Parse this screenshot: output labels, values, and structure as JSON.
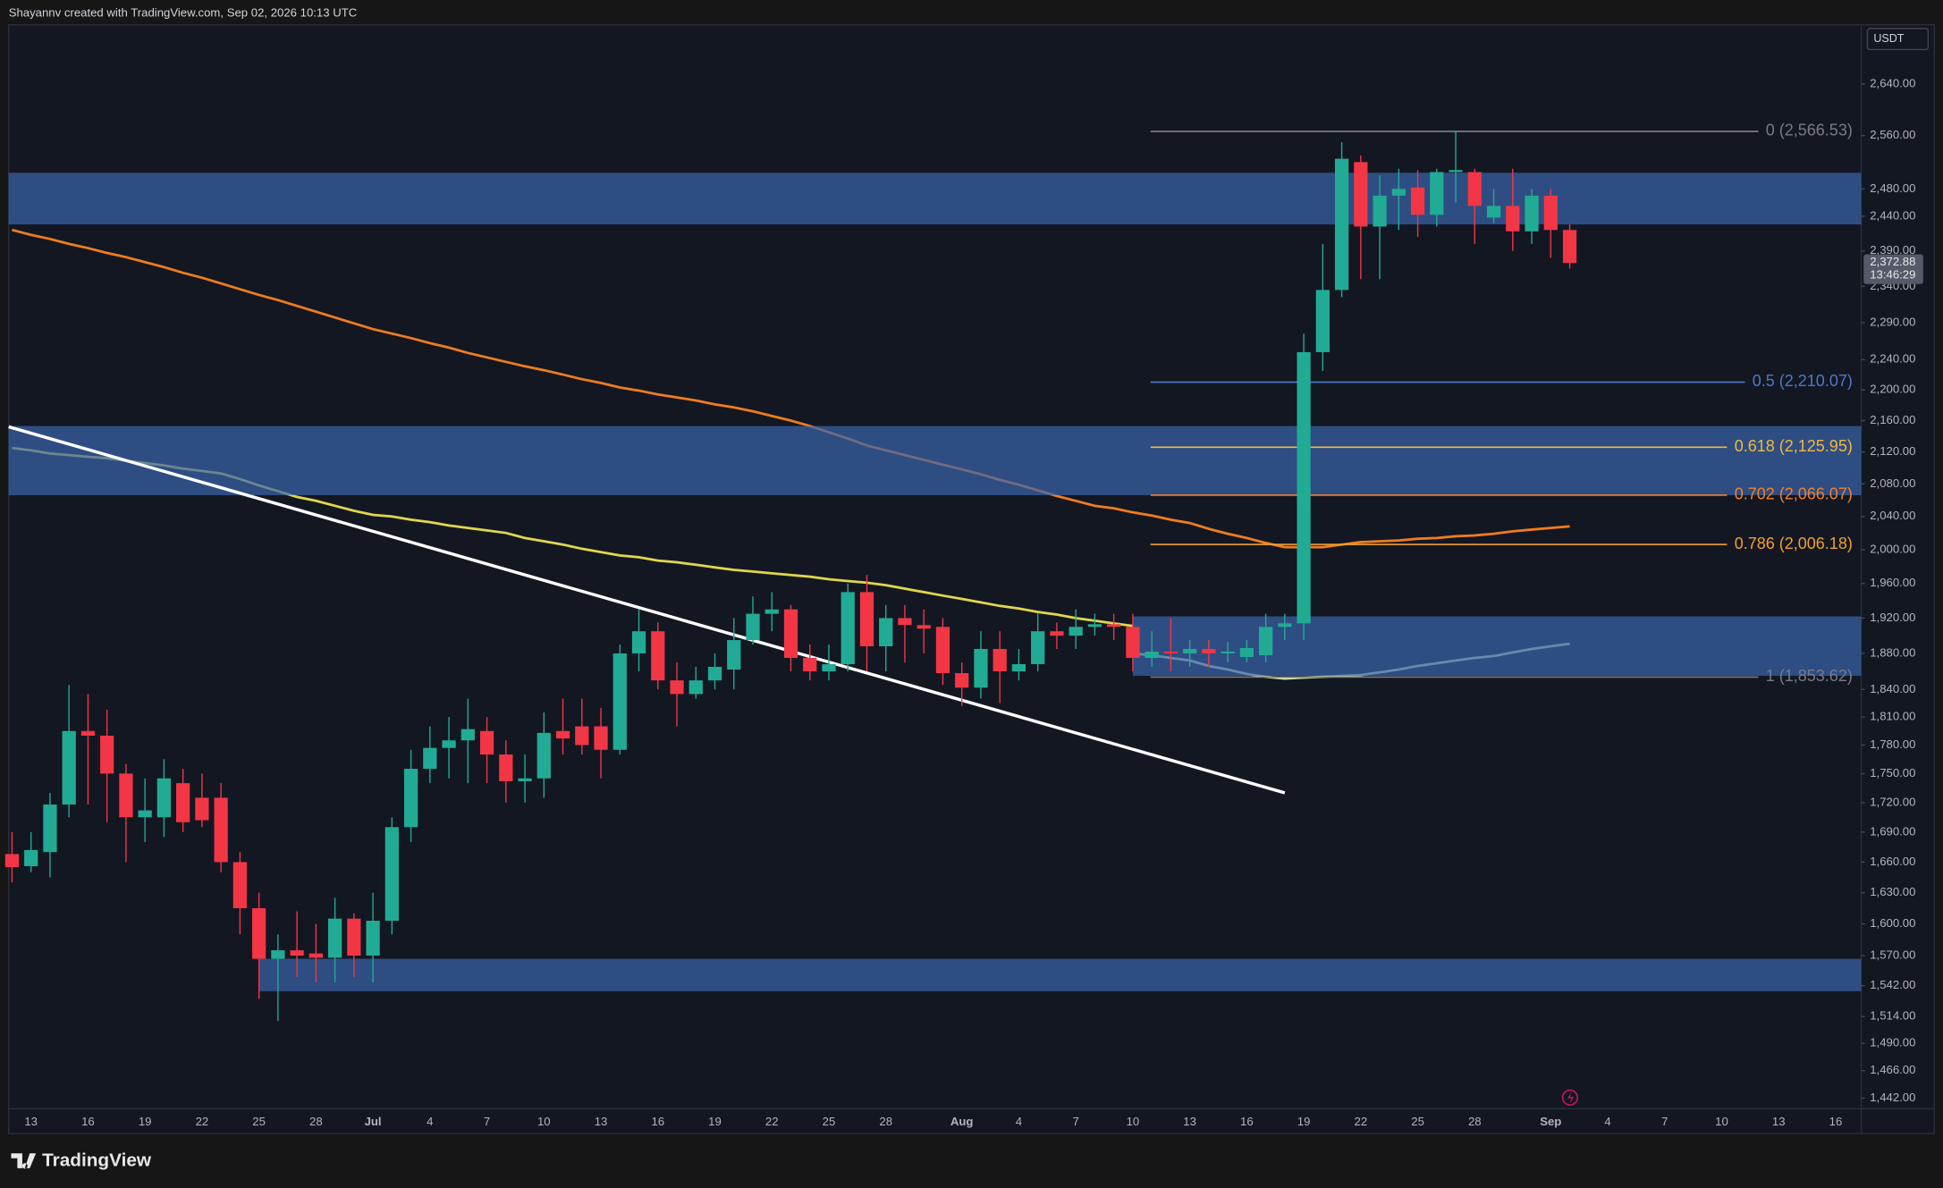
{
  "header": "Shayannv created with TradingView.com, Sep 02, 2026 10:13 UTC",
  "footer": {
    "logo": "TradingView"
  },
  "chart_data": {
    "type": "candlestick",
    "currency": "USDT",
    "log_scale": true,
    "categories": [
      null,
      "13",
      null,
      null,
      "16",
      null,
      null,
      "19",
      null,
      null,
      "22",
      null,
      null,
      "25",
      null,
      null,
      "28",
      null,
      null,
      "Jul",
      null,
      null,
      "4",
      null,
      null,
      "7",
      null,
      null,
      "10",
      null,
      null,
      "13",
      null,
      null,
      "16",
      null,
      null,
      "19",
      null,
      null,
      "22",
      null,
      null,
      "25",
      null,
      null,
      "28",
      null,
      null,
      null,
      "Aug",
      null,
      null,
      "4",
      null,
      null,
      "7",
      null,
      null,
      "10",
      null,
      null,
      "13",
      null,
      null,
      "16",
      null,
      null,
      "19",
      null,
      null,
      "22",
      null,
      null,
      "25",
      null,
      null,
      "28",
      null,
      null,
      null,
      "Sep",
      null,
      null,
      "4",
      null,
      null,
      "7",
      null,
      null,
      "10",
      null,
      null,
      "13",
      null,
      null,
      "16",
      null
    ],
    "open": [
      1668,
      1656,
      1670,
      1718,
      1795,
      1790,
      1750,
      1705,
      1705,
      1740,
      1725,
      1725,
      1660,
      1615,
      1567,
      1575,
      1572,
      1568,
      1605,
      1570,
      1603,
      1695,
      1755,
      1777,
      1785,
      1795,
      1770,
      1742,
      1745,
      1795,
      1800,
      1800,
      1775,
      1880,
      1905,
      1850,
      1835,
      1850,
      1862,
      1895,
      1925,
      1930,
      1875,
      1860,
      1868,
      1950,
      1888,
      1920,
      1912,
      1910,
      1858,
      1842,
      1885,
      1860,
      1868,
      1905,
      1900,
      1910,
      1913,
      1910,
      1875,
      1882,
      1880,
      1885,
      1880,
      1876,
      1878,
      1910,
      1914,
      2250,
      2335,
      2520,
      2425,
      2470,
      2482,
      2442,
      2505,
      2505,
      2438,
      2455,
      2418,
      2470,
      2420,
      null,
      null,
      null,
      null,
      null,
      null,
      null,
      null,
      null,
      null,
      null,
      null,
      null,
      null,
      null
    ],
    "high": [
      1690,
      1690,
      1730,
      1845,
      1835,
      1818,
      1760,
      1745,
      1765,
      1755,
      1750,
      1740,
      1670,
      1630,
      1590,
      1612,
      1600,
      1625,
      1610,
      1630,
      1705,
      1775,
      1800,
      1810,
      1830,
      1810,
      1785,
      1770,
      1815,
      1830,
      1830,
      1820,
      1890,
      1930,
      1915,
      1870,
      1865,
      1880,
      1920,
      1945,
      1950,
      1935,
      1890,
      1890,
      1960,
      1970,
      1935,
      1935,
      1930,
      1920,
      1870,
      1905,
      1905,
      1885,
      1925,
      1915,
      1930,
      1925,
      1925,
      1925,
      1905,
      1920,
      1895,
      1895,
      1893,
      1895,
      1925,
      1925,
      2275,
      2400,
      2550,
      2530,
      2500,
      2510,
      2508,
      2510,
      2566.53,
      2510,
      2480,
      2510,
      2480,
      2480,
      2428,
      null,
      null,
      null,
      null,
      null,
      null,
      null,
      null,
      null,
      null,
      null,
      null,
      null,
      null,
      null
    ],
    "low": [
      1640,
      1650,
      1645,
      1705,
      1718,
      1700,
      1660,
      1680,
      1685,
      1690,
      1695,
      1650,
      1590,
      1530,
      1510,
      1550,
      1545,
      1545,
      1550,
      1545,
      1590,
      1680,
      1740,
      1745,
      1740,
      1740,
      1720,
      1720,
      1725,
      1770,
      1770,
      1745,
      1770,
      1860,
      1840,
      1800,
      1830,
      1840,
      1840,
      1890,
      1905,
      1860,
      1850,
      1850,
      1860,
      1860,
      1860,
      1870,
      1880,
      1845,
      1822,
      1830,
      1825,
      1850,
      1860,
      1885,
      1885,
      1900,
      1895,
      1860,
      1865,
      1860,
      1865,
      1865,
      1870,
      1870,
      1870,
      1895,
      1895,
      2225,
      2325,
      2350,
      2350,
      2420,
      2410,
      2425,
      2460,
      2400,
      2430,
      2390,
      2400,
      2380,
      2365,
      null,
      null,
      null,
      null,
      null,
      null,
      null,
      null,
      null,
      null,
      null,
      null,
      null,
      null,
      null
    ],
    "close": [
      1655,
      1672,
      1718,
      1795,
      1790,
      1750,
      1705,
      1712,
      1745,
      1700,
      1702,
      1660,
      1615,
      1567,
      1575,
      1570,
      1568,
      1605,
      1570,
      1603,
      1695,
      1755,
      1777,
      1785,
      1797,
      1770,
      1742,
      1745,
      1793,
      1787,
      1780,
      1775,
      1880,
      1905,
      1850,
      1835,
      1850,
      1865,
      1895,
      1925,
      1930,
      1875,
      1860,
      1868,
      1950,
      1888,
      1920,
      1912,
      1908,
      1858,
      1842,
      1885,
      1860,
      1868,
      1905,
      1900,
      1910,
      1913,
      1910,
      1875,
      1882,
      1880,
      1885,
      1880,
      1882,
      1886,
      1910,
      1914,
      2250,
      2335,
      2525,
      2425,
      2470,
      2480,
      2442,
      2505,
      2508,
      2455,
      2455,
      2418,
      2470,
      2420,
      2372.88,
      null,
      null,
      null,
      null,
      null,
      null,
      null,
      null,
      null,
      null,
      null,
      null,
      null,
      null,
      null
    ],
    "up_color": "#22ab94",
    "down_color": "#f23645",
    "ylim": [
      1433,
      2735
    ],
    "yticks": [
      {
        "value": 2640,
        "label": "2,640.00"
      },
      {
        "value": 2560,
        "label": "2,560.00"
      },
      {
        "value": 2480,
        "label": "2,480.00"
      },
      {
        "value": 2440,
        "label": "2,440.00"
      },
      {
        "value": 2390,
        "label": "2,390.00"
      },
      {
        "value": 2340,
        "label": "2,340.00"
      },
      {
        "value": 2290,
        "label": "2,290.00"
      },
      {
        "value": 2240,
        "label": "2,240.00"
      },
      {
        "value": 2200,
        "label": "2,200.00"
      },
      {
        "value": 2160,
        "label": "2,160.00"
      },
      {
        "value": 2120,
        "label": "2,120.00"
      },
      {
        "value": 2080,
        "label": "2,080.00"
      },
      {
        "value": 2040,
        "label": "2,040.00"
      },
      {
        "value": 2000,
        "label": "2,000.00"
      },
      {
        "value": 1960,
        "label": "1,960.00"
      },
      {
        "value": 1920,
        "label": "1,920.00"
      },
      {
        "value": 1880,
        "label": "1,880.00"
      },
      {
        "value": 1840,
        "label": "1,840.00"
      },
      {
        "value": 1810,
        "label": "1,810.00"
      },
      {
        "value": 1780,
        "label": "1,780.00"
      },
      {
        "value": 1750,
        "label": "1,750.00"
      },
      {
        "value": 1720,
        "label": "1,720.00"
      },
      {
        "value": 1690,
        "label": "1,690.00"
      },
      {
        "value": 1660,
        "label": "1,660.00"
      },
      {
        "value": 1630,
        "label": "1,630.00"
      },
      {
        "value": 1600,
        "label": "1,600.00"
      },
      {
        "value": 1570,
        "label": "1,570.00"
      },
      {
        "value": 1542,
        "label": "1,542.00"
      },
      {
        "value": 1514,
        "label": "1,514.00"
      },
      {
        "value": 1490,
        "label": "1,490.00"
      },
      {
        "value": 1466,
        "label": "1,466.00"
      },
      {
        "value": 1442,
        "label": "1,442.00"
      }
    ],
    "last_price": {
      "value": 2372.88,
      "label": "2,372.88"
    },
    "countdown": "13:46:29",
    "moving_averages": [
      {
        "color": "#ef7d1f",
        "values": [
          2420,
          2413,
          2407,
          2400,
          2394,
          2387,
          2381,
          2374,
          2367,
          2359,
          2352,
          2344,
          2336,
          2328,
          2321,
          2313,
          2305,
          2297,
          2289,
          2281,
          2275,
          2269,
          2262,
          2256,
          2249,
          2243,
          2237,
          2231,
          2226,
          2220,
          2214,
          2209,
          2203,
          2199,
          2194,
          2190,
          2186,
          2181,
          2177,
          2172,
          2166,
          2160,
          2153,
          2145,
          2137,
          2128,
          2122,
          2116,
          2110,
          2104,
          2098,
          2092,
          2085,
          2079,
          2072,
          2065,
          2059,
          2053,
          2050,
          2045,
          2041,
          2036,
          2032,
          2025,
          2019,
          2014,
          2008,
          2003,
          2003,
          2003,
          2006,
          2009,
          2010,
          2011,
          2013,
          2014,
          2016,
          2017,
          2019,
          2022,
          2024,
          2026,
          2028,
          null,
          null,
          null,
          null,
          null,
          null,
          null,
          null,
          null,
          null,
          null,
          null,
          null,
          null,
          null
        ]
      },
      {
        "color": "#e2d64c",
        "values": [
          2125,
          2122,
          2118,
          2116,
          2114,
          2112,
          2109,
          2106,
          2103,
          2099,
          2096,
          2093,
          2086,
          2078,
          2071,
          2064,
          2059,
          2053,
          2047,
          2042,
          2040,
          2036,
          2033,
          2029,
          2026,
          2023,
          2020,
          2014,
          2010,
          2006,
          2001,
          1997,
          1993,
          1991,
          1987,
          1985,
          1982,
          1979,
          1976,
          1974,
          1972,
          1970,
          1968,
          1965,
          1963,
          1961,
          1958,
          1954,
          1950,
          1946,
          1942,
          1938,
          1934,
          1931,
          1927,
          1924,
          1920,
          1917,
          1914,
          1911,
          null,
          null,
          null,
          null,
          null,
          null,
          null,
          null,
          null,
          null,
          null,
          null,
          null,
          null,
          null,
          null,
          null,
          null,
          null,
          null,
          null,
          null,
          null,
          null,
          null,
          null,
          null,
          null,
          null,
          null,
          null,
          null,
          null,
          null,
          null,
          null,
          null,
          null
        ]
      },
      {
        "color": "#cde0ab",
        "values": [
          null,
          null,
          null,
          null,
          null,
          null,
          null,
          null,
          null,
          null,
          null,
          null,
          null,
          null,
          null,
          null,
          null,
          null,
          null,
          null,
          null,
          null,
          null,
          null,
          null,
          null,
          null,
          null,
          null,
          null,
          null,
          null,
          null,
          null,
          null,
          null,
          null,
          null,
          null,
          null,
          null,
          null,
          null,
          null,
          null,
          null,
          null,
          null,
          null,
          null,
          null,
          null,
          null,
          null,
          null,
          null,
          null,
          null,
          null,
          1880,
          1878,
          1875,
          1872,
          1866,
          1862,
          1857,
          1854,
          1852,
          1853,
          1854,
          1855,
          1856,
          1859,
          1862,
          1866,
          1869,
          1872,
          1875,
          1877,
          1881,
          1885,
          1888,
          1891,
          null,
          null,
          null,
          null,
          null,
          null,
          null,
          null,
          null,
          null,
          null,
          null,
          null,
          null,
          null
        ]
      }
    ],
    "zone_color": "#3a65ad",
    "zones": [
      {
        "high": 2504,
        "low": 2428,
        "x0": 0
      },
      {
        "high": 2153,
        "low": 2066,
        "x0": 0
      },
      {
        "high": 1922,
        "low": 1855,
        "x0": 59
      },
      {
        "high": 1567,
        "low": 1537,
        "x0": 13
      }
    ],
    "trendline": {
      "color": "#ffffff",
      "x": [
        0,
        67
      ],
      "y": [
        2152,
        1730
      ]
    },
    "fib_start": 60,
    "fib_levels": [
      {
        "value": 2566.53,
        "label": "0 (2,566.53)",
        "color": "#787b86"
      },
      {
        "value": 2210.07,
        "label": "0.5 (2,210.07)",
        "color": "#4f78c4"
      },
      {
        "value": 2125.95,
        "label": "0.618 (2,125.95)",
        "color": "#f2b93b"
      },
      {
        "value": 2066.07,
        "label": "0.702 (2,066.07)",
        "color": "#f0822a"
      },
      {
        "value": 2006.18,
        "label": "0.786 (2,006.18)",
        "color": "#f0a030"
      },
      {
        "value": 1853.62,
        "label": "1 (1,853.62)",
        "color": "#787b86"
      }
    ]
  }
}
